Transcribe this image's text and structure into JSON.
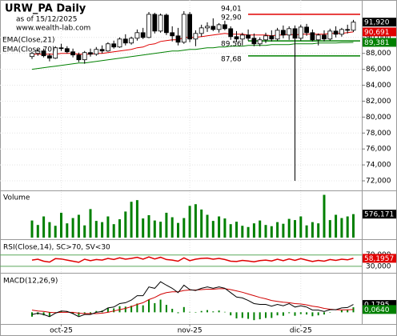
{
  "chart_data": [
    {
      "type": "candlestick",
      "title": "URW_PA Daily",
      "subtitle": "as of 15/12/2025",
      "source": "www.wealth-lab.com",
      "categories": [
        null,
        null,
        null,
        null,
        null,
        "oct-25",
        null,
        null,
        null,
        null,
        null,
        null,
        null,
        null,
        null,
        null,
        null,
        null,
        null,
        null,
        null,
        null,
        null,
        null,
        null,
        null,
        null,
        "nov-25",
        null,
        null,
        null,
        null,
        null,
        null,
        null,
        null,
        null,
        null,
        null,
        null,
        null,
        null,
        null,
        null,
        null,
        null,
        "dic-25",
        null,
        null,
        null,
        null,
        null,
        null,
        null,
        null,
        null
      ],
      "open": [
        87.6,
        88.0,
        88.3,
        87.7,
        87.4,
        88.7,
        88.6,
        88.2,
        87.8,
        87.2,
        88.1,
        87.9,
        88.5,
        88.3,
        89.2,
        88.8,
        89.8,
        89.3,
        89.9,
        90.6,
        90.0,
        92.9,
        90.8,
        92.8,
        90.6,
        90.2,
        89.4,
        92.9,
        89.8,
        90.5,
        91.2,
        91.4,
        91.0,
        91.6,
        91.1,
        90.1,
        89.8,
        90.3,
        89.9,
        89.2,
        89.7,
        90.2,
        89.8,
        90.9,
        90.3,
        91.1,
        89.9,
        91.3,
        90.6,
        89.7,
        90.3,
        89.8,
        90.8,
        90.4,
        91.0,
        90.9
      ],
      "high": [
        88.2,
        88.5,
        88.6,
        88.0,
        88.9,
        89.2,
        88.9,
        88.6,
        88.1,
        88.3,
        88.6,
        88.8,
        89.0,
        89.4,
        89.6,
        90.0,
        90.4,
        90.1,
        91.0,
        91.2,
        93.2,
        93.1,
        93.0,
        93.0,
        91.4,
        91.2,
        93.3,
        93.2,
        90.9,
        91.6,
        91.9,
        92.4,
        91.8,
        92.1,
        91.4,
        90.8,
        90.6,
        91.0,
        90.5,
        90.0,
        90.6,
        90.9,
        91.2,
        91.5,
        91.4,
        91.5,
        91.6,
        91.7,
        91.0,
        90.5,
        90.9,
        91.1,
        91.4,
        91.2,
        91.6,
        92.2
      ],
      "low": [
        87.3,
        87.7,
        87.5,
        87.0,
        87.3,
        88.3,
        88.0,
        87.5,
        86.9,
        86.7,
        87.6,
        87.7,
        88.0,
        88.2,
        88.6,
        88.7,
        89.0,
        89.1,
        89.6,
        89.8,
        89.9,
        90.5,
        90.6,
        90.3,
        89.5,
        89.0,
        89.2,
        89.4,
        88.9,
        90.1,
        90.7,
        90.8,
        90.6,
        90.9,
        89.7,
        89.4,
        89.0,
        89.6,
        88.9,
        88.9,
        89.3,
        89.5,
        89.6,
        89.9,
        89.7,
        72.0,
        89.6,
        90.2,
        89.5,
        89.0,
        89.5,
        89.6,
        90.0,
        90.1,
        90.5,
        90.7
      ],
      "close": [
        88.0,
        88.3,
        87.7,
        87.4,
        88.7,
        88.6,
        88.2,
        87.8,
        87.2,
        88.1,
        87.9,
        88.5,
        88.3,
        89.2,
        88.8,
        89.8,
        89.3,
        89.9,
        90.6,
        90.0,
        92.9,
        90.8,
        92.8,
        90.6,
        90.2,
        89.4,
        92.9,
        89.8,
        90.5,
        91.2,
        91.4,
        91.0,
        91.6,
        91.1,
        90.1,
        89.8,
        90.3,
        89.9,
        89.2,
        89.7,
        90.2,
        89.8,
        90.9,
        90.3,
        91.1,
        89.9,
        91.3,
        90.6,
        89.7,
        90.3,
        89.8,
        90.8,
        90.4,
        91.0,
        90.9,
        91.92
      ],
      "close_label": "91,920",
      "series": [
        {
          "name": "EMA(Close,21)",
          "color": "#e00000",
          "last_label": "90,691",
          "values": [
            87.9,
            87.9,
            87.9,
            87.9,
            87.9,
            88.0,
            88.0,
            88.0,
            87.9,
            87.9,
            87.9,
            88.0,
            88.0,
            88.1,
            88.2,
            88.3,
            88.4,
            88.5,
            88.7,
            88.8,
            89.1,
            89.2,
            89.5,
            89.6,
            89.7,
            89.7,
            90.0,
            90.0,
            90.0,
            90.1,
            90.2,
            90.3,
            90.4,
            90.5,
            90.4,
            90.4,
            90.4,
            90.3,
            90.3,
            90.3,
            90.3,
            90.2,
            90.3,
            90.3,
            90.4,
            90.3,
            90.4,
            90.4,
            90.4,
            90.4,
            90.4,
            90.5,
            90.5,
            90.5,
            90.6,
            90.691
          ]
        },
        {
          "name": "EMA(Close,70)",
          "color": "#008000",
          "last_label": "89,381",
          "values": [
            86.0,
            86.1,
            86.2,
            86.3,
            86.4,
            86.5,
            86.6,
            86.7,
            86.8,
            86.8,
            86.9,
            87.0,
            87.1,
            87.2,
            87.3,
            87.4,
            87.5,
            87.6,
            87.7,
            87.8,
            87.9,
            88.0,
            88.1,
            88.2,
            88.3,
            88.3,
            88.4,
            88.5,
            88.5,
            88.6,
            88.7,
            88.7,
            88.8,
            88.8,
            88.9,
            88.9,
            88.9,
            89.0,
            89.0,
            89.0,
            89.0,
            89.1,
            89.1,
            89.1,
            89.1,
            89.2,
            89.2,
            89.2,
            89.2,
            89.3,
            89.3,
            89.3,
            89.3,
            89.35,
            89.36,
            89.381
          ]
        }
      ],
      "levels": [
        {
          "label": "94,01",
          "value": 94.01
        },
        {
          "label": "92,90",
          "value": 92.9,
          "color": "#e00000"
        },
        {
          "label": "89,56",
          "value": 89.56,
          "color": "#008000"
        },
        {
          "label": "87,68",
          "value": 87.68,
          "color": "#008000"
        }
      ],
      "ylim": [
        71,
        94.6
      ],
      "yticks": [
        {
          "value": 72,
          "label": "72,000"
        },
        {
          "value": 74,
          "label": "74,000"
        },
        {
          "value": 76,
          "label": "76,000"
        },
        {
          "value": 78,
          "label": "78,000"
        },
        {
          "value": 80,
          "label": "80,000"
        },
        {
          "value": 82,
          "label": "82,000"
        },
        {
          "value": 84,
          "label": "84,000"
        },
        {
          "value": 86,
          "label": "86,000"
        },
        {
          "value": 88,
          "label": "88,000"
        },
        {
          "value": 90,
          "label": "90,000"
        }
      ],
      "grid": true
    },
    {
      "type": "bar",
      "title": "Volume",
      "color": "#008000",
      "value_label": "576,171",
      "values": [
        420000,
        310000,
        520000,
        380000,
        290000,
        610000,
        350000,
        480000,
        560000,
        300000,
        700000,
        410000,
        380000,
        520000,
        330000,
        450000,
        640000,
        880000,
        920000,
        470000,
        550000,
        420000,
        390000,
        610000,
        500000,
        360000,
        480000,
        780000,
        820000,
        690000,
        560000,
        410000,
        520000,
        470000,
        330000,
        390000,
        290000,
        260000,
        350000,
        420000,
        310000,
        280000,
        380000,
        340000,
        460000,
        430000,
        520000,
        300000,
        380000,
        350000,
        1050000,
        430000,
        560000,
        480000,
        520000,
        576171
      ],
      "ylim": [
        0,
        1100000
      ]
    },
    {
      "type": "line",
      "title": "RSI(Close,14), SC>70, SV<30",
      "color": "#e00000",
      "value_label": "58,1957",
      "values": [
        52,
        55,
        48,
        45,
        57,
        56,
        52,
        48,
        44,
        55,
        50,
        54,
        52,
        58,
        54,
        60,
        55,
        58,
        62,
        55,
        63,
        56,
        62,
        54,
        52,
        48,
        60,
        50,
        55,
        58,
        59,
        55,
        58,
        54,
        48,
        47,
        51,
        49,
        46,
        50,
        52,
        49,
        55,
        50,
        56,
        51,
        57,
        52,
        47,
        51,
        48,
        54,
        51,
        55,
        53,
        58.1957
      ],
      "ylim": [
        10,
        120
      ],
      "yticks": [
        {
          "value": 30,
          "label": "30,000"
        },
        {
          "value": 70,
          "label": "70,000"
        }
      ]
    },
    {
      "type": "macd",
      "title": "MACD(12,26,9)",
      "macd": {
        "color": "#000000",
        "last_label": "0,1795",
        "values": [
          -0.05,
          -0.02,
          -0.05,
          -0.1,
          -0.02,
          0.03,
          0.02,
          -0.03,
          -0.1,
          -0.05,
          -0.05,
          0.0,
          0.02,
          0.1,
          0.12,
          0.2,
          0.22,
          0.28,
          0.38,
          0.38,
          0.58,
          0.55,
          0.7,
          0.62,
          0.55,
          0.45,
          0.62,
          0.52,
          0.5,
          0.55,
          0.58,
          0.55,
          0.58,
          0.55,
          0.45,
          0.35,
          0.33,
          0.27,
          0.2,
          0.18,
          0.18,
          0.14,
          0.18,
          0.15,
          0.2,
          0.12,
          0.15,
          0.12,
          0.05,
          0.05,
          0.02,
          0.06,
          0.06,
          0.1,
          0.11,
          0.1795
        ]
      },
      "signal": {
        "color": "#d00000",
        "last_label": "0,0640",
        "values": [
          0.05,
          0.03,
          0.02,
          0.0,
          -0.01,
          0.0,
          0.0,
          0.0,
          -0.02,
          -0.03,
          -0.03,
          -0.03,
          -0.02,
          0.0,
          0.03,
          0.06,
          0.09,
          0.13,
          0.18,
          0.22,
          0.29,
          0.34,
          0.41,
          0.45,
          0.47,
          0.47,
          0.5,
          0.51,
          0.51,
          0.52,
          0.53,
          0.53,
          0.54,
          0.54,
          0.52,
          0.49,
          0.46,
          0.42,
          0.38,
          0.34,
          0.31,
          0.27,
          0.25,
          0.23,
          0.22,
          0.2,
          0.19,
          0.17,
          0.14,
          0.12,
          0.09,
          0.07,
          0.06,
          0.055,
          0.058,
          0.064
        ]
      },
      "histogram": {
        "color": "#008000",
        "values": [
          -0.1,
          -0.05,
          -0.07,
          -0.1,
          -0.01,
          0.03,
          0.02,
          -0.03,
          -0.08,
          -0.02,
          -0.02,
          0.03,
          0.04,
          0.1,
          0.09,
          0.14,
          0.13,
          0.15,
          0.2,
          0.16,
          0.29,
          0.21,
          0.29,
          0.17,
          0.08,
          -0.02,
          0.12,
          0.01,
          -0.01,
          0.03,
          0.05,
          0.02,
          0.04,
          0.01,
          -0.07,
          -0.14,
          -0.13,
          -0.15,
          -0.18,
          -0.16,
          -0.13,
          -0.13,
          -0.07,
          -0.08,
          -0.02,
          -0.08,
          -0.04,
          -0.05,
          -0.09,
          -0.07,
          -0.05,
          -0.01,
          0.0,
          0.045,
          0.052,
          0.1155
        ]
      },
      "ylim": [
        -0.25,
        0.85
      ]
    }
  ]
}
